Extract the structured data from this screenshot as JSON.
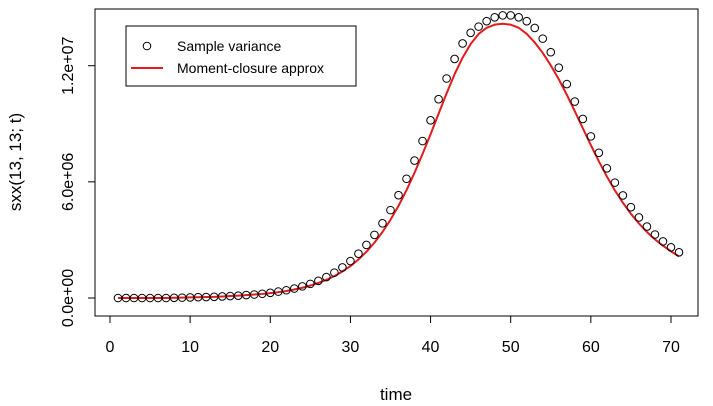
{
  "chart_data": {
    "type": "line",
    "title": "",
    "xlabel": "time",
    "ylabel": "sxx(13, 13; t)",
    "xlim": [
      1,
      71
    ],
    "ylim": [
      0,
      14000000
    ],
    "x_ticks": [
      0,
      10,
      20,
      30,
      40,
      50,
      60,
      70
    ],
    "x_tick_labels": [
      "0",
      "10",
      "20",
      "30",
      "40",
      "50",
      "60",
      "70"
    ],
    "y_ticks": [
      0,
      6000000,
      12000000
    ],
    "y_tick_labels": [
      "0.0e+00",
      "6.0e+06",
      "1.2e+07"
    ],
    "grid": false,
    "legend_position": "top-left",
    "legend": [
      "Sample variance",
      "Moment-closure approx"
    ],
    "series": [
      {
        "name": "Sample variance",
        "style": "open-circles",
        "color": "#000000",
        "x": [
          1,
          2,
          3,
          4,
          5,
          6,
          7,
          8,
          9,
          10,
          11,
          12,
          13,
          14,
          15,
          16,
          17,
          18,
          19,
          20,
          21,
          22,
          23,
          24,
          25,
          26,
          27,
          28,
          29,
          30,
          31,
          32,
          33,
          34,
          35,
          36,
          37,
          38,
          39,
          40,
          41,
          42,
          43,
          44,
          45,
          46,
          47,
          48,
          49,
          50,
          51,
          52,
          53,
          54,
          55,
          56,
          57,
          58,
          59,
          60,
          61,
          62,
          63,
          64,
          65,
          66,
          67,
          68,
          69,
          70,
          71
        ],
        "y": [
          0,
          0,
          0,
          0,
          0,
          0,
          0,
          10000,
          20000,
          30000,
          40000,
          50000,
          60000,
          80000,
          100000,
          120000,
          150000,
          180000,
          220000,
          270000,
          330000,
          400000,
          490000,
          600000,
          730000,
          890000,
          1080000,
          1310000,
          1580000,
          1910000,
          2290000,
          2740000,
          3260000,
          3860000,
          4540000,
          5310000,
          6160000,
          7100000,
          8110000,
          9180000,
          10270000,
          11340000,
          12350000,
          13150000,
          13700000,
          14020000,
          14300000,
          14500000,
          14600000,
          14600000,
          14500000,
          14300000,
          13950000,
          13400000,
          12700000,
          11900000,
          11050000,
          10150000,
          9250000,
          8350000,
          7500000,
          6700000,
          5960000,
          5300000,
          4690000,
          4160000,
          3690000,
          3280000,
          2920000,
          2620000,
          2360000
        ]
      },
      {
        "name": "Moment-closure approx",
        "style": "line",
        "color": "#e41a1c",
        "x": [
          1,
          2,
          3,
          4,
          5,
          6,
          7,
          8,
          9,
          10,
          11,
          12,
          13,
          14,
          15,
          16,
          17,
          18,
          19,
          20,
          21,
          22,
          23,
          24,
          25,
          26,
          27,
          28,
          29,
          30,
          31,
          32,
          33,
          34,
          35,
          36,
          37,
          38,
          39,
          40,
          41,
          42,
          43,
          44,
          45,
          46,
          47,
          48,
          49,
          50,
          51,
          52,
          53,
          54,
          55,
          56,
          57,
          58,
          59,
          60,
          61,
          62,
          63,
          64,
          65,
          66,
          67,
          68,
          69,
          70,
          71
        ],
        "y": [
          0,
          0,
          0,
          0,
          0,
          0,
          0,
          10000,
          20000,
          30000,
          40000,
          50000,
          60000,
          80000,
          100000,
          120000,
          150000,
          180000,
          210000,
          250000,
          300000,
          360000,
          440000,
          530000,
          640000,
          780000,
          940000,
          1130000,
          1370000,
          1650000,
          1990000,
          2390000,
          2860000,
          3410000,
          4040000,
          4760000,
          5570000,
          6470000,
          7440000,
          8460000,
          9520000,
          10570000,
          11560000,
          12420000,
          13120000,
          13640000,
          13960000,
          14120000,
          14170000,
          14120000,
          13960000,
          13640000,
          13200000,
          12660000,
          12020000,
          11300000,
          10500000,
          9650000,
          8770000,
          7900000,
          7060000,
          6280000,
          5560000,
          4920000,
          4350000,
          3850000,
          3410000,
          3030000,
          2700000,
          2410000,
          2150000
        ]
      }
    ]
  }
}
